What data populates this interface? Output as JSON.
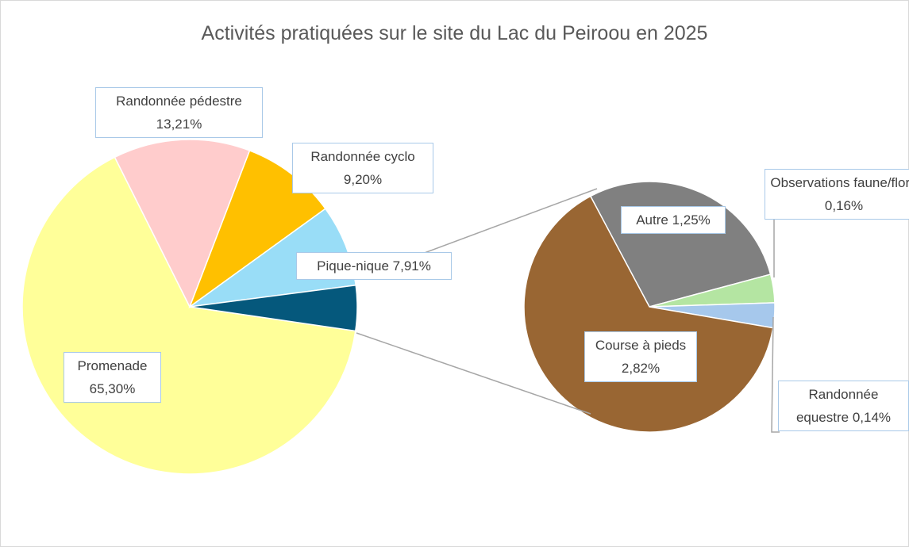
{
  "chart_data": {
    "type": "pie-of-pie",
    "title": "Activités pratiquées sur le site du Lac du Peiroou en 2025",
    "categories": [
      "Promenade",
      "Randonnée pédestre",
      "Randonnée cyclo",
      "Pique-nique"
    ],
    "values": [
      65.3,
      13.21,
      9.2,
      7.91
    ],
    "value_labels": [
      "65,30%",
      "13,21%",
      "9,20%",
      "7,91%"
    ],
    "colors": [
      "#ffff99",
      "#ffcccc",
      "#ffc000",
      "#99ddf7"
    ],
    "other_color": "#05587c",
    "secondary": {
      "categories": [
        "Autre",
        "Observations faune/flore",
        "Randonnée equestre",
        "Course à pieds"
      ],
      "values": [
        1.25,
        0.16,
        0.14,
        2.82
      ],
      "value_labels": [
        "1,25%",
        "0,16%",
        "0,14%",
        "2,82%"
      ],
      "colors": [
        "#808080",
        "#b4e5a2",
        "#a6c8ec",
        "#996633"
      ]
    }
  }
}
